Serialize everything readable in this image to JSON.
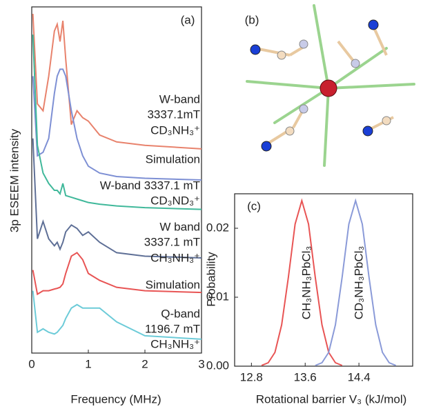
{
  "chart_data": [
    {
      "type": "line",
      "panel_label": "(a)",
      "xlabel": "Frequency (MHz)",
      "ylabel": "3p ESEEM intensity",
      "xlim": [
        0,
        3
      ],
      "xticks": [
        0,
        1,
        2,
        3
      ],
      "ylim": [
        0,
        100
      ],
      "x": [
        0.02,
        0.1,
        0.2,
        0.3,
        0.4,
        0.45,
        0.5,
        0.55,
        0.6,
        0.7,
        0.8,
        0.9,
        1.0,
        1.2,
        1.5,
        2.0,
        3.0
      ],
      "series": [
        {
          "name_lines": [
            "W-band",
            "3337.1mT",
            "CD₃NH₃⁺"
          ],
          "color": "#e8826c",
          "values": [
            98,
            72,
            70,
            80,
            93,
            95,
            90,
            96,
            85,
            66,
            70,
            68,
            67,
            63,
            61,
            60,
            59
          ]
        },
        {
          "name_lines": [
            "Simulation"
          ],
          "color": "#7d8fd4",
          "values": [
            80,
            57,
            58,
            62,
            75,
            80,
            82,
            82,
            80,
            70,
            62,
            57,
            54,
            52,
            51,
            50.5,
            50
          ]
        },
        {
          "name_lines": [
            "W-band 3337.1 mT",
            "CD₃ND₃⁺"
          ],
          "color": "#3fb89a",
          "values": [
            92,
            60,
            52,
            49,
            47,
            47,
            46,
            49,
            45.5,
            45,
            44.5,
            44,
            43.5,
            43,
            42.5,
            42,
            41.5
          ]
        },
        {
          "name_lines": [
            "W band",
            "3337.1 mT",
            "CH₃NH₃⁺"
          ],
          "color": "#5e6f96",
          "values": [
            62,
            33,
            38,
            33,
            31,
            32,
            30,
            32,
            35,
            37,
            36,
            34,
            35,
            32,
            29,
            28,
            27.5
          ]
        },
        {
          "name_lines": [
            "Simulation"
          ],
          "color": "#e85454",
          "values": [
            24,
            17,
            18,
            18,
            18.5,
            18.7,
            19,
            20,
            23,
            28,
            29,
            27,
            23,
            21,
            19,
            18,
            17.5
          ]
        },
        {
          "name_lines": [
            "Q-band",
            "1196.7 mT",
            "CH₃NH₃⁺"
          ],
          "color": "#6ccbd8",
          "values": [
            18,
            6,
            7,
            6,
            5.5,
            6,
            7,
            8,
            10,
            13,
            14,
            13,
            13,
            13,
            9,
            5,
            4
          ]
        }
      ]
    },
    {
      "type": "molecule",
      "panel_label": "(b)"
    },
    {
      "type": "line",
      "panel_label": "(c)",
      "xlabel": "Rotational barrier V₃ (kJ/mol)",
      "ylabel": "Probability",
      "xlim": [
        12.55,
        15.2
      ],
      "xticks": [
        12.8,
        13.6,
        14.4
      ],
      "ylim": [
        0,
        0.025
      ],
      "yticks": [
        {
          "value": 0,
          "label": "0.00"
        },
        0.01,
        0.02
      ],
      "series": [
        {
          "name": "CH₃NH₃PbCl₃",
          "color": "#e85454",
          "x": [
            12.95,
            13.05,
            13.15,
            13.25,
            13.35,
            13.45,
            13.55,
            13.65,
            13.75,
            13.85,
            13.95,
            14.05,
            14.15
          ],
          "values": [
            0.0001,
            0.0005,
            0.002,
            0.006,
            0.0129,
            0.0206,
            0.024,
            0.0206,
            0.0129,
            0.006,
            0.002,
            0.0005,
            0.0001
          ]
        },
        {
          "name": "CD₃NH₃PbCl₃",
          "color": "#8a9ad8",
          "x": [
            13.75,
            13.85,
            13.95,
            14.05,
            14.15,
            14.25,
            14.35,
            14.45,
            14.55,
            14.65,
            14.75,
            14.85,
            14.95
          ],
          "values": [
            0.0001,
            0.0005,
            0.002,
            0.006,
            0.0129,
            0.0206,
            0.024,
            0.0206,
            0.0129,
            0.006,
            0.002,
            0.0005,
            0.0001
          ]
        }
      ]
    }
  ]
}
